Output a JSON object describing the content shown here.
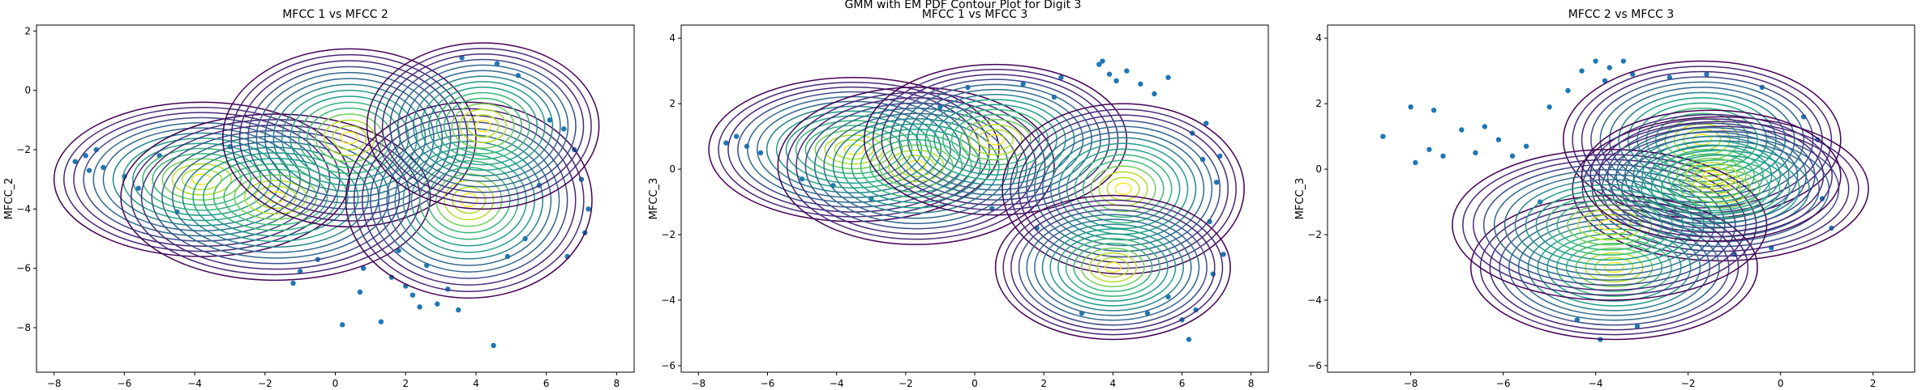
{
  "figure": {
    "suptitle": "GMM with EM PDF Contour Plot for Digit 3"
  },
  "chart_data": [
    {
      "type": "scatter",
      "title": "MFCC 1 vs MFCC 2",
      "xlabel": "MFCC_1",
      "ylabel": "MFCC_2",
      "xlim": [
        -8.5,
        8.5
      ],
      "ylim": [
        -9.5,
        2.2
      ],
      "xticks": [
        -8,
        -6,
        -4,
        -2,
        0,
        2,
        4,
        6,
        8
      ],
      "yticks": [
        -8,
        -6,
        -4,
        -2,
        0,
        2
      ],
      "grid": false,
      "point_color": "#1f77b4",
      "colormap": "viridis",
      "contour_levels": 15,
      "components": [
        {
          "cx": -3.8,
          "cy": -3.0,
          "rx": 4.2,
          "ry": 2.6
        },
        {
          "cx": -1.7,
          "cy": -3.6,
          "rx": 4.4,
          "ry": 2.8
        },
        {
          "cx": 0.4,
          "cy": -1.6,
          "rx": 3.6,
          "ry": 3.0
        },
        {
          "cx": 3.8,
          "cy": -3.7,
          "rx": 3.5,
          "ry": 3.3
        },
        {
          "cx": 4.2,
          "cy": -1.2,
          "rx": 3.3,
          "ry": 2.8
        }
      ],
      "points": [
        {
          "x": -7.4,
          "y": -2.4
        },
        {
          "x": -7.1,
          "y": -2.2
        },
        {
          "x": -6.8,
          "y": -2.0
        },
        {
          "x": -6.6,
          "y": -2.6
        },
        {
          "x": -7.0,
          "y": -2.7
        },
        {
          "x": -1.0,
          "y": -6.1
        },
        {
          "x": -0.5,
          "y": -5.7
        },
        {
          "x": 0.2,
          "y": -7.9
        },
        {
          "x": 0.7,
          "y": -6.8
        },
        {
          "x": 1.3,
          "y": -7.8
        },
        {
          "x": 0.8,
          "y": -6.0
        },
        {
          "x": 2.0,
          "y": -6.6
        },
        {
          "x": 2.4,
          "y": -7.3
        },
        {
          "x": 2.9,
          "y": -7.2
        },
        {
          "x": 3.2,
          "y": -6.7
        },
        {
          "x": 3.5,
          "y": -7.4
        },
        {
          "x": 4.5,
          "y": -8.6
        },
        {
          "x": 1.6,
          "y": -6.3
        },
        {
          "x": 2.2,
          "y": -6.9
        },
        {
          "x": -1.2,
          "y": -6.5
        },
        {
          "x": 3.6,
          "y": 1.1
        },
        {
          "x": 4.6,
          "y": 0.9
        },
        {
          "x": 5.2,
          "y": 0.5
        },
        {
          "x": 6.1,
          "y": -1.0
        },
        {
          "x": 6.5,
          "y": -1.3
        },
        {
          "x": 6.8,
          "y": -2.0
        },
        {
          "x": 7.0,
          "y": -3.0
        },
        {
          "x": 7.2,
          "y": -4.0
        },
        {
          "x": 7.1,
          "y": -4.8
        },
        {
          "x": 6.6,
          "y": -5.6
        },
        {
          "x": 5.4,
          "y": -5.0
        },
        {
          "x": -5.0,
          "y": -2.2
        },
        {
          "x": -5.6,
          "y": -3.3
        },
        {
          "x": -6.0,
          "y": -2.9
        },
        {
          "x": -4.5,
          "y": -4.1
        },
        {
          "x": -3.0,
          "y": -1.9
        },
        {
          "x": 1.8,
          "y": -5.4
        },
        {
          "x": 2.6,
          "y": -5.9
        },
        {
          "x": 5.8,
          "y": -3.2
        },
        {
          "x": 4.9,
          "y": -5.6
        }
      ]
    },
    {
      "type": "scatter",
      "title": "MFCC 1 vs MFCC 3",
      "xlabel": "MFCC_1",
      "ylabel": "MFCC_3",
      "xlim": [
        -8.5,
        8.5
      ],
      "ylim": [
        -6.2,
        4.4
      ],
      "xticks": [
        -8,
        -6,
        -4,
        -2,
        0,
        2,
        4,
        6,
        8
      ],
      "yticks": [
        -6,
        -4,
        -2,
        0,
        2,
        4
      ],
      "grid": false,
      "point_color": "#1f77b4",
      "colormap": "viridis",
      "contour_levels": 15,
      "components": [
        {
          "cx": -3.5,
          "cy": 0.6,
          "rx": 4.2,
          "ry": 2.2
        },
        {
          "cx": -1.7,
          "cy": 0.1,
          "rx": 4.0,
          "ry": 2.4
        },
        {
          "cx": 0.6,
          "cy": 0.9,
          "rx": 3.8,
          "ry": 2.3
        },
        {
          "cx": 4.3,
          "cy": -0.6,
          "rx": 3.5,
          "ry": 2.6
        },
        {
          "cx": 4.0,
          "cy": -3.0,
          "rx": 3.4,
          "ry": 2.2
        }
      ],
      "points": [
        {
          "x": -7.2,
          "y": 0.8
        },
        {
          "x": -6.9,
          "y": 1.0
        },
        {
          "x": -6.6,
          "y": 0.7
        },
        {
          "x": -6.2,
          "y": 0.5
        },
        {
          "x": -5.0,
          "y": -0.3
        },
        {
          "x": -4.1,
          "y": -0.5
        },
        {
          "x": 1.4,
          "y": 2.6
        },
        {
          "x": 2.5,
          "y": 2.8
        },
        {
          "x": 3.6,
          "y": 3.2
        },
        {
          "x": 3.9,
          "y": 2.9
        },
        {
          "x": 4.4,
          "y": 3.0
        },
        {
          "x": 4.8,
          "y": 2.6
        },
        {
          "x": 5.2,
          "y": 2.3
        },
        {
          "x": 3.7,
          "y": 3.3
        },
        {
          "x": 6.3,
          "y": 1.1
        },
        {
          "x": 6.6,
          "y": 0.3
        },
        {
          "x": 7.0,
          "y": -0.4
        },
        {
          "x": 6.8,
          "y": -1.6
        },
        {
          "x": 7.2,
          "y": -2.6
        },
        {
          "x": 6.9,
          "y": -3.2
        },
        {
          "x": 6.4,
          "y": -4.3
        },
        {
          "x": 6.0,
          "y": -4.6
        },
        {
          "x": 6.2,
          "y": -5.2
        },
        {
          "x": 5.6,
          "y": -3.9
        },
        {
          "x": 1.8,
          "y": -1.8
        },
        {
          "x": -0.2,
          "y": 2.5
        },
        {
          "x": -1.0,
          "y": 1.9
        },
        {
          "x": 5.6,
          "y": 2.8
        },
        {
          "x": 6.7,
          "y": 1.4
        },
        {
          "x": 7.1,
          "y": 0.4
        },
        {
          "x": 4.1,
          "y": 2.7
        },
        {
          "x": 2.3,
          "y": 2.2
        },
        {
          "x": -3.0,
          "y": -0.9
        },
        {
          "x": 0.5,
          "y": -1.2
        },
        {
          "x": 3.1,
          "y": -4.4
        },
        {
          "x": 5.0,
          "y": -4.4
        }
      ]
    },
    {
      "type": "scatter",
      "title": "MFCC 2 vs MFCC 3",
      "xlabel": "MFCC_2",
      "ylabel": "MFCC_3",
      "xlim": [
        -9.8,
        2.9
      ],
      "ylim": [
        -6.2,
        4.4
      ],
      "xticks": [
        -8,
        -6,
        -4,
        -2,
        0,
        2
      ],
      "yticks": [
        -6,
        -4,
        -2,
        0,
        2,
        4
      ],
      "grid": false,
      "point_color": "#1f77b4",
      "colormap": "viridis",
      "contour_levels": 15,
      "components": [
        {
          "cx": -1.7,
          "cy": 0.9,
          "rx": 3.0,
          "ry": 2.4
        },
        {
          "cx": -1.3,
          "cy": -0.6,
          "rx": 3.2,
          "ry": 2.2
        },
        {
          "cx": -3.6,
          "cy": -3.0,
          "rx": 3.1,
          "ry": 2.2
        },
        {
          "cx": -3.7,
          "cy": -1.7,
          "rx": 3.4,
          "ry": 2.3
        },
        {
          "cx": -1.5,
          "cy": -0.2,
          "rx": 2.8,
          "ry": 2.0
        }
      ],
      "points": [
        {
          "x": -8.6,
          "y": 1.0
        },
        {
          "x": -8.0,
          "y": 1.9
        },
        {
          "x": -7.9,
          "y": 0.2
        },
        {
          "x": -7.6,
          "y": 0.6
        },
        {
          "x": -7.5,
          "y": 1.8
        },
        {
          "x": -7.3,
          "y": 0.4
        },
        {
          "x": -6.9,
          "y": 1.2
        },
        {
          "x": -6.6,
          "y": 0.5
        },
        {
          "x": -6.4,
          "y": 1.3
        },
        {
          "x": -6.1,
          "y": 0.9
        },
        {
          "x": -5.8,
          "y": 0.4
        },
        {
          "x": -5.5,
          "y": 0.7
        },
        {
          "x": -4.3,
          "y": 3.0
        },
        {
          "x": -4.0,
          "y": 3.3
        },
        {
          "x": -3.7,
          "y": 3.1
        },
        {
          "x": -3.4,
          "y": 3.3
        },
        {
          "x": -3.2,
          "y": 2.9
        },
        {
          "x": -3.8,
          "y": 2.7
        },
        {
          "x": -4.6,
          "y": 2.4
        },
        {
          "x": -3.9,
          "y": -5.2
        },
        {
          "x": -4.4,
          "y": -4.6
        },
        {
          "x": -3.1,
          "y": -4.8
        },
        {
          "x": 0.9,
          "y": -0.9
        },
        {
          "x": 1.1,
          "y": -1.8
        },
        {
          "x": 0.5,
          "y": 1.6
        },
        {
          "x": -0.4,
          "y": 2.5
        },
        {
          "x": -2.4,
          "y": 2.8
        },
        {
          "x": -1.6,
          "y": 2.9
        },
        {
          "x": 0.8,
          "y": 0.9
        },
        {
          "x": -5.2,
          "y": -1.0
        },
        {
          "x": -5.0,
          "y": 1.9
        },
        {
          "x": -0.2,
          "y": -2.4
        },
        {
          "x": -1.0,
          "y": -2.6
        }
      ]
    }
  ]
}
